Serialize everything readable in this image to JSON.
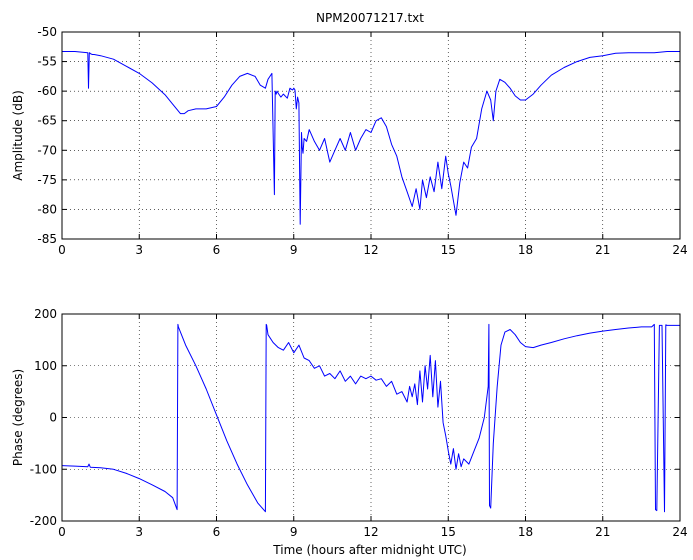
{
  "figure": {
    "title": "NPM20071217.txt",
    "xlabel": "Time (hours after midnight UTC)"
  },
  "chart_data": [
    {
      "type": "line",
      "title": "NPM20071217.txt",
      "xlabel": "",
      "ylabel": "Amplitude (dB)",
      "xlim": [
        0,
        24
      ],
      "ylim": [
        -85,
        -50
      ],
      "xticks": [
        0,
        3,
        6,
        9,
        12,
        15,
        18,
        21,
        24
      ],
      "yticks": [
        -85,
        -80,
        -75,
        -70,
        -65,
        -60,
        -55,
        -50
      ],
      "grid": true,
      "line_color": "#0000ff",
      "series": [
        {
          "x": [
            0,
            0.5,
            1.0,
            1.03,
            1.06,
            1.09,
            1.12,
            1.18,
            1.25,
            1.5,
            2.0,
            2.5,
            3.0,
            3.5,
            4.0,
            4.3,
            4.6,
            4.75,
            4.9,
            5.2,
            5.6,
            6.0,
            6.3,
            6.6,
            6.9,
            7.2,
            7.5,
            7.7,
            7.9,
            8.0,
            8.15,
            8.25,
            8.28,
            8.32,
            8.35,
            8.42,
            8.5,
            8.6,
            8.75,
            8.85,
            8.95,
            9.0,
            9.05,
            9.1,
            9.15,
            9.2,
            9.25,
            9.3,
            9.33,
            9.36,
            9.4,
            9.5,
            9.6,
            9.8,
            10.0,
            10.2,
            10.4,
            10.6,
            10.8,
            11.0,
            11.2,
            11.4,
            11.6,
            11.8,
            12.0,
            12.2,
            12.4,
            12.6,
            12.8,
            13.0,
            13.2,
            13.4,
            13.6,
            13.75,
            13.9,
            14.0,
            14.15,
            14.3,
            14.45,
            14.6,
            14.75,
            14.9,
            15.0,
            15.1,
            15.2,
            15.3,
            15.45,
            15.6,
            15.75,
            15.9,
            16.1,
            16.3,
            16.5,
            16.65,
            16.75,
            16.85,
            17.0,
            17.2,
            17.4,
            17.6,
            17.8,
            18.0,
            18.3,
            18.6,
            19.0,
            19.5,
            20.0,
            20.5,
            21.0,
            21.5,
            22.0,
            22.5,
            23.0,
            23.5,
            24.0
          ],
          "values": [
            -53.3,
            -53.3,
            -53.5,
            -59.5,
            -53.5,
            -53.6,
            -53.7,
            -53.8,
            -53.8,
            -54.0,
            -54.6,
            -55.8,
            -57.0,
            -58.6,
            -60.6,
            -62.2,
            -63.8,
            -63.8,
            -63.3,
            -63.0,
            -63.0,
            -62.6,
            -61.0,
            -59.0,
            -57.5,
            -57.0,
            -57.5,
            -59.0,
            -59.5,
            -58.0,
            -57.0,
            -77.5,
            -60.0,
            -60.5,
            -60.0,
            -60.5,
            -61.0,
            -60.5,
            -61.2,
            -59.5,
            -59.8,
            -59.5,
            -59.8,
            -63.0,
            -61.0,
            -62.0,
            -82.5,
            -67.0,
            -69.5,
            -70.5,
            -68.0,
            -68.5,
            -66.5,
            -68.5,
            -70.0,
            -68.0,
            -72.0,
            -70.0,
            -68.0,
            -70.0,
            -67.0,
            -70.0,
            -68.0,
            -66.5,
            -67.0,
            -65.0,
            -64.5,
            -66.0,
            -69.0,
            -71.0,
            -74.5,
            -77.0,
            -79.5,
            -76.5,
            -80.0,
            -75.0,
            -78.0,
            -74.5,
            -77.0,
            -72.0,
            -76.5,
            -71.0,
            -74.0,
            -76.0,
            -78.5,
            -81.0,
            -75.5,
            -72.0,
            -73.0,
            -69.5,
            -68.0,
            -63.0,
            -60.0,
            -61.5,
            -65.0,
            -60.0,
            -58.0,
            -58.5,
            -59.5,
            -60.8,
            -61.5,
            -61.5,
            -60.5,
            -59.0,
            -57.3,
            -56.0,
            -55.0,
            -54.3,
            -54.0,
            -53.6,
            -53.5,
            -53.5,
            -53.5,
            -53.3,
            -53.3
          ]
        }
      ]
    },
    {
      "type": "line",
      "title": "",
      "xlabel": "Time (hours after midnight UTC)",
      "ylabel": "Phase (degrees)",
      "xlim": [
        0,
        24
      ],
      "ylim": [
        -200,
        200
      ],
      "xticks": [
        0,
        3,
        6,
        9,
        12,
        15,
        18,
        21,
        24
      ],
      "yticks": [
        -200,
        -100,
        0,
        100,
        200
      ],
      "grid": true,
      "line_color": "#0000ff",
      "series": [
        {
          "x": [
            0,
            0.5,
            1.0,
            1.05,
            1.1,
            1.5,
            2.0,
            2.5,
            3.0,
            3.5,
            4.0,
            4.3,
            4.47,
            4.5,
            4.52,
            4.8,
            5.2,
            5.6,
            6.0,
            6.4,
            6.8,
            7.2,
            7.6,
            7.9,
            7.93,
            7.95,
            8.0,
            8.2,
            8.4,
            8.6,
            8.8,
            9.0,
            9.2,
            9.4,
            9.6,
            9.8,
            10.0,
            10.2,
            10.4,
            10.6,
            10.8,
            11.0,
            11.2,
            11.4,
            11.6,
            11.8,
            12.0,
            12.2,
            12.4,
            12.6,
            12.8,
            13.0,
            13.2,
            13.4,
            13.5,
            13.6,
            13.7,
            13.8,
            13.9,
            14.0,
            14.1,
            14.2,
            14.3,
            14.4,
            14.5,
            14.6,
            14.7,
            14.8,
            14.9,
            15.0,
            15.1,
            15.2,
            15.3,
            15.4,
            15.5,
            15.6,
            15.8,
            16.0,
            16.2,
            16.4,
            16.55,
            16.58,
            16.6,
            16.65,
            16.75,
            16.9,
            17.05,
            17.2,
            17.4,
            17.6,
            17.8,
            18.0,
            18.3,
            18.6,
            19.0,
            19.5,
            20.0,
            20.5,
            21.0,
            21.5,
            22.0,
            22.5,
            22.9,
            23.0,
            23.05,
            23.1,
            23.2,
            23.3,
            23.4,
            23.45,
            23.5,
            24.0
          ],
          "values": [
            -93,
            -94,
            -95,
            -90,
            -96,
            -97,
            -100,
            -108,
            -118,
            -130,
            -143,
            -155,
            -178,
            180,
            175,
            140,
            100,
            55,
            5,
            -45,
            -90,
            -130,
            -165,
            -182,
            180,
            178,
            160,
            145,
            135,
            130,
            145,
            125,
            140,
            115,
            110,
            95,
            100,
            80,
            85,
            75,
            90,
            70,
            80,
            65,
            80,
            75,
            80,
            72,
            75,
            60,
            70,
            45,
            50,
            30,
            60,
            40,
            65,
            25,
            90,
            30,
            100,
            55,
            120,
            40,
            110,
            20,
            70,
            -10,
            -35,
            -65,
            -90,
            -60,
            -100,
            -70,
            -95,
            -80,
            -90,
            -65,
            -40,
            0,
            60,
            180,
            -170,
            -175,
            -50,
            60,
            140,
            165,
            170,
            160,
            145,
            137,
            135,
            140,
            145,
            152,
            158,
            163,
            167,
            170,
            173,
            175,
            175,
            180,
            -178,
            -180,
            178,
            178,
            -182,
            179,
            178,
            178
          ]
        }
      ]
    }
  ]
}
